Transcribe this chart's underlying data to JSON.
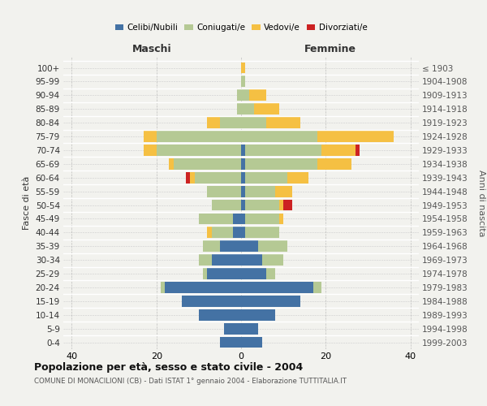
{
  "age_groups": [
    "0-4",
    "5-9",
    "10-14",
    "15-19",
    "20-24",
    "25-29",
    "30-34",
    "35-39",
    "40-44",
    "45-49",
    "50-54",
    "55-59",
    "60-64",
    "65-69",
    "70-74",
    "75-79",
    "80-84",
    "85-89",
    "90-94",
    "95-99",
    "100+"
  ],
  "birth_years": [
    "1999-2003",
    "1994-1998",
    "1989-1993",
    "1984-1988",
    "1979-1983",
    "1974-1978",
    "1969-1973",
    "1964-1968",
    "1959-1963",
    "1954-1958",
    "1949-1953",
    "1944-1948",
    "1939-1943",
    "1934-1938",
    "1929-1933",
    "1924-1928",
    "1919-1923",
    "1914-1918",
    "1909-1913",
    "1904-1908",
    "≤ 1903"
  ],
  "maschi_celibi": [
    5,
    4,
    10,
    14,
    18,
    8,
    7,
    5,
    2,
    2,
    0,
    0,
    0,
    0,
    0,
    0,
    0,
    0,
    0,
    0,
    0
  ],
  "maschi_coniugati": [
    0,
    0,
    0,
    0,
    1,
    1,
    3,
    4,
    5,
    8,
    7,
    8,
    11,
    16,
    20,
    20,
    5,
    1,
    1,
    0,
    0
  ],
  "maschi_vedovi": [
    0,
    0,
    0,
    0,
    0,
    0,
    0,
    0,
    1,
    0,
    0,
    0,
    1,
    1,
    3,
    3,
    3,
    0,
    0,
    0,
    0
  ],
  "maschi_divorziati": [
    0,
    0,
    0,
    0,
    0,
    0,
    0,
    0,
    0,
    0,
    0,
    0,
    1,
    0,
    0,
    0,
    0,
    0,
    0,
    0,
    0
  ],
  "femmine_nubili": [
    5,
    4,
    8,
    14,
    17,
    6,
    5,
    4,
    1,
    1,
    1,
    1,
    1,
    1,
    1,
    0,
    0,
    0,
    0,
    0,
    0
  ],
  "femmine_coniugate": [
    0,
    0,
    0,
    0,
    2,
    2,
    5,
    7,
    8,
    8,
    8,
    7,
    10,
    17,
    18,
    18,
    6,
    3,
    2,
    1,
    0
  ],
  "femmine_vedove": [
    0,
    0,
    0,
    0,
    0,
    0,
    0,
    0,
    0,
    1,
    1,
    4,
    5,
    8,
    8,
    18,
    8,
    6,
    4,
    0,
    1
  ],
  "femmine_divorziate": [
    0,
    0,
    0,
    0,
    0,
    0,
    0,
    0,
    0,
    0,
    2,
    0,
    0,
    0,
    1,
    0,
    0,
    0,
    0,
    0,
    0
  ],
  "color_celibi": "#4472a4",
  "color_coniugati": "#b5c994",
  "color_vedovi": "#f5c043",
  "color_divorziati": "#cc2222",
  "xlim": [
    -42,
    42
  ],
  "xticks": [
    -40,
    -20,
    0,
    20,
    40
  ],
  "xticklabels": [
    "40",
    "20",
    "0",
    "20",
    "40"
  ],
  "title": "Popolazione per età, sesso e stato civile - 2004",
  "subtitle": "COMUNE DI MONACILIONI (CB) - Dati ISTAT 1° gennaio 2004 - Elaborazione TUTTITALIA.IT",
  "ylabel_left": "Fasce di età",
  "ylabel_right": "Anni di nascita",
  "maschi_label": "Maschi",
  "femmine_label": "Femmine",
  "legend_labels": [
    "Celibi/Nubili",
    "Coniugati/e",
    "Vedovi/e",
    "Divorziati/e"
  ],
  "bg_color": "#f2f2ee"
}
